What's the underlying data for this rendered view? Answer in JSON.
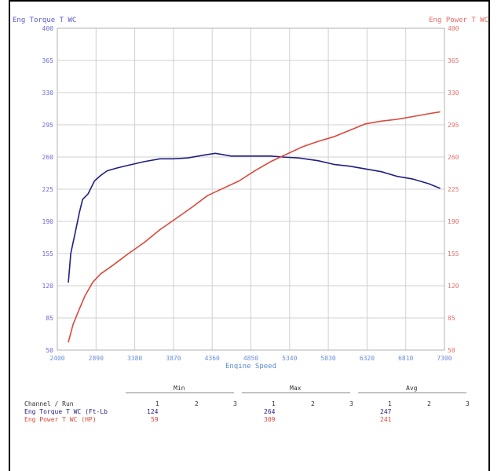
{
  "chart_data": {
    "type": "line",
    "xlabel": "Engine Speed",
    "xlim": [
      2400,
      7300
    ],
    "x_ticks": [
      "2400",
      "2890",
      "3380",
      "3870",
      "4360",
      "4850",
      "5340",
      "5830",
      "6320",
      "6810",
      "7300"
    ],
    "left_axis": {
      "label": "Eng Torque T WC",
      "lim": [
        50,
        400
      ],
      "ticks": [
        "400",
        "365",
        "330",
        "295",
        "260",
        "225",
        "190",
        "155",
        "120",
        "85",
        "50"
      ],
      "color": "#3b3bb0"
    },
    "right_axis": {
      "label": "Eng Power T WC",
      "lim": [
        50,
        400
      ],
      "ticks": [
        "400",
        "365",
        "330",
        "295",
        "260",
        "225",
        "190",
        "155",
        "120",
        "85",
        "50"
      ],
      "color": "#d9534f"
    },
    "grid": true,
    "series": [
      {
        "name": "Eng Torque T WC",
        "color": "#1f1f80",
        "axis": "left",
        "x": [
          2540,
          2570,
          2620,
          2680,
          2720,
          2790,
          2870,
          2950,
          3030,
          3150,
          3300,
          3500,
          3700,
          3870,
          4050,
          4250,
          4400,
          4600,
          4850,
          5100,
          5250,
          5450,
          5700,
          5900,
          6100,
          6300,
          6500,
          6700,
          6900,
          7100,
          7240
        ],
        "y": [
          124,
          155,
          175,
          200,
          214,
          220,
          234,
          240,
          245,
          248,
          251,
          255,
          258,
          258,
          259,
          262,
          264,
          261,
          261,
          261,
          260,
          259,
          256,
          252,
          250,
          247,
          244,
          239,
          236,
          231,
          226
        ]
      },
      {
        "name": "Eng Power T WC",
        "color": "#d9483b",
        "axis": "right",
        "x": [
          2540,
          2600,
          2680,
          2750,
          2850,
          2950,
          3100,
          3300,
          3500,
          3700,
          3900,
          4100,
          4300,
          4500,
          4700,
          4900,
          5100,
          5300,
          5500,
          5700,
          5900,
          6100,
          6300,
          6500,
          6700,
          6900,
          7100,
          7240
        ],
        "y": [
          59,
          78,
          95,
          109,
          124,
          133,
          142,
          155,
          167,
          181,
          193,
          205,
          218,
          226,
          234,
          245,
          255,
          263,
          271,
          277,
          282,
          289,
          296,
          299,
          301,
          304,
          307,
          309
        ]
      }
    ]
  },
  "summary": {
    "groups": [
      "Min",
      "Max",
      "Avg"
    ],
    "runs": [
      "1",
      "2",
      "3"
    ],
    "header_label": "Channel / Run",
    "rows": [
      {
        "channel": "Eng Torque T WC (Ft-Lb",
        "min": "124",
        "max": "264",
        "avg": "247",
        "color": "#1f1f80"
      },
      {
        "channel": "Eng Power T WC (HP)",
        "min": "59",
        "max": "309",
        "avg": "241",
        "color": "#d9483b"
      }
    ]
  }
}
